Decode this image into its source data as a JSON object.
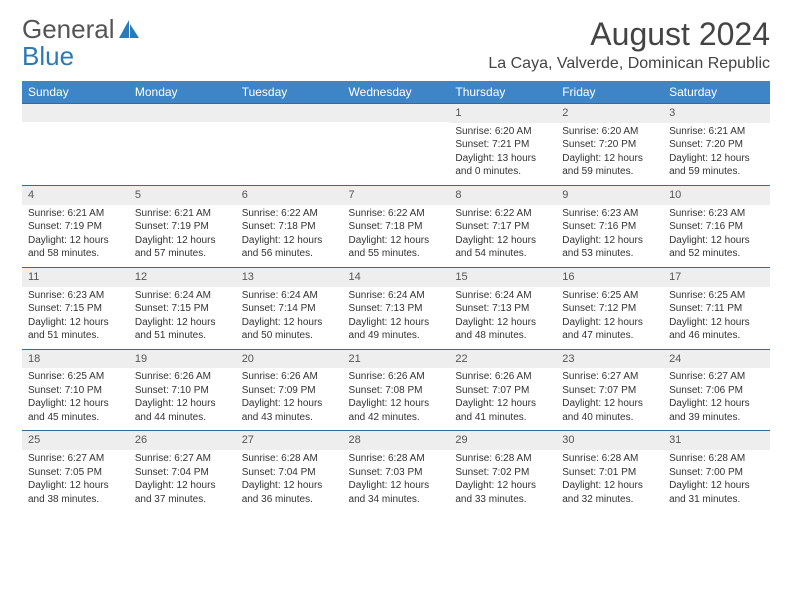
{
  "logo": {
    "text1": "General",
    "text2": "Blue"
  },
  "title": "August 2024",
  "location": "La Caya, Valverde, Dominican Republic",
  "colors": {
    "header_bg": "#3d85c6",
    "header_fg": "#ffffff",
    "row_border": "#356a9a",
    "daynum_bg": "#eeeeee",
    "page_bg": "#ffffff",
    "text": "#333333",
    "logo_gray": "#555555",
    "logo_blue": "#2a7ab8"
  },
  "day_headers": [
    "Sunday",
    "Monday",
    "Tuesday",
    "Wednesday",
    "Thursday",
    "Friday",
    "Saturday"
  ],
  "weeks": [
    [
      null,
      null,
      null,
      null,
      {
        "n": "1",
        "sunrise": "Sunrise: 6:20 AM",
        "sunset": "Sunset: 7:21 PM",
        "daylight": "Daylight: 13 hours and 0 minutes."
      },
      {
        "n": "2",
        "sunrise": "Sunrise: 6:20 AM",
        "sunset": "Sunset: 7:20 PM",
        "daylight": "Daylight: 12 hours and 59 minutes."
      },
      {
        "n": "3",
        "sunrise": "Sunrise: 6:21 AM",
        "sunset": "Sunset: 7:20 PM",
        "daylight": "Daylight: 12 hours and 59 minutes."
      }
    ],
    [
      {
        "n": "4",
        "sunrise": "Sunrise: 6:21 AM",
        "sunset": "Sunset: 7:19 PM",
        "daylight": "Daylight: 12 hours and 58 minutes."
      },
      {
        "n": "5",
        "sunrise": "Sunrise: 6:21 AM",
        "sunset": "Sunset: 7:19 PM",
        "daylight": "Daylight: 12 hours and 57 minutes."
      },
      {
        "n": "6",
        "sunrise": "Sunrise: 6:22 AM",
        "sunset": "Sunset: 7:18 PM",
        "daylight": "Daylight: 12 hours and 56 minutes."
      },
      {
        "n": "7",
        "sunrise": "Sunrise: 6:22 AM",
        "sunset": "Sunset: 7:18 PM",
        "daylight": "Daylight: 12 hours and 55 minutes."
      },
      {
        "n": "8",
        "sunrise": "Sunrise: 6:22 AM",
        "sunset": "Sunset: 7:17 PM",
        "daylight": "Daylight: 12 hours and 54 minutes."
      },
      {
        "n": "9",
        "sunrise": "Sunrise: 6:23 AM",
        "sunset": "Sunset: 7:16 PM",
        "daylight": "Daylight: 12 hours and 53 minutes."
      },
      {
        "n": "10",
        "sunrise": "Sunrise: 6:23 AM",
        "sunset": "Sunset: 7:16 PM",
        "daylight": "Daylight: 12 hours and 52 minutes."
      }
    ],
    [
      {
        "n": "11",
        "sunrise": "Sunrise: 6:23 AM",
        "sunset": "Sunset: 7:15 PM",
        "daylight": "Daylight: 12 hours and 51 minutes."
      },
      {
        "n": "12",
        "sunrise": "Sunrise: 6:24 AM",
        "sunset": "Sunset: 7:15 PM",
        "daylight": "Daylight: 12 hours and 51 minutes."
      },
      {
        "n": "13",
        "sunrise": "Sunrise: 6:24 AM",
        "sunset": "Sunset: 7:14 PM",
        "daylight": "Daylight: 12 hours and 50 minutes."
      },
      {
        "n": "14",
        "sunrise": "Sunrise: 6:24 AM",
        "sunset": "Sunset: 7:13 PM",
        "daylight": "Daylight: 12 hours and 49 minutes."
      },
      {
        "n": "15",
        "sunrise": "Sunrise: 6:24 AM",
        "sunset": "Sunset: 7:13 PM",
        "daylight": "Daylight: 12 hours and 48 minutes."
      },
      {
        "n": "16",
        "sunrise": "Sunrise: 6:25 AM",
        "sunset": "Sunset: 7:12 PM",
        "daylight": "Daylight: 12 hours and 47 minutes."
      },
      {
        "n": "17",
        "sunrise": "Sunrise: 6:25 AM",
        "sunset": "Sunset: 7:11 PM",
        "daylight": "Daylight: 12 hours and 46 minutes."
      }
    ],
    [
      {
        "n": "18",
        "sunrise": "Sunrise: 6:25 AM",
        "sunset": "Sunset: 7:10 PM",
        "daylight": "Daylight: 12 hours and 45 minutes."
      },
      {
        "n": "19",
        "sunrise": "Sunrise: 6:26 AM",
        "sunset": "Sunset: 7:10 PM",
        "daylight": "Daylight: 12 hours and 44 minutes."
      },
      {
        "n": "20",
        "sunrise": "Sunrise: 6:26 AM",
        "sunset": "Sunset: 7:09 PM",
        "daylight": "Daylight: 12 hours and 43 minutes."
      },
      {
        "n": "21",
        "sunrise": "Sunrise: 6:26 AM",
        "sunset": "Sunset: 7:08 PM",
        "daylight": "Daylight: 12 hours and 42 minutes."
      },
      {
        "n": "22",
        "sunrise": "Sunrise: 6:26 AM",
        "sunset": "Sunset: 7:07 PM",
        "daylight": "Daylight: 12 hours and 41 minutes."
      },
      {
        "n": "23",
        "sunrise": "Sunrise: 6:27 AM",
        "sunset": "Sunset: 7:07 PM",
        "daylight": "Daylight: 12 hours and 40 minutes."
      },
      {
        "n": "24",
        "sunrise": "Sunrise: 6:27 AM",
        "sunset": "Sunset: 7:06 PM",
        "daylight": "Daylight: 12 hours and 39 minutes."
      }
    ],
    [
      {
        "n": "25",
        "sunrise": "Sunrise: 6:27 AM",
        "sunset": "Sunset: 7:05 PM",
        "daylight": "Daylight: 12 hours and 38 minutes."
      },
      {
        "n": "26",
        "sunrise": "Sunrise: 6:27 AM",
        "sunset": "Sunset: 7:04 PM",
        "daylight": "Daylight: 12 hours and 37 minutes."
      },
      {
        "n": "27",
        "sunrise": "Sunrise: 6:28 AM",
        "sunset": "Sunset: 7:04 PM",
        "daylight": "Daylight: 12 hours and 36 minutes."
      },
      {
        "n": "28",
        "sunrise": "Sunrise: 6:28 AM",
        "sunset": "Sunset: 7:03 PM",
        "daylight": "Daylight: 12 hours and 34 minutes."
      },
      {
        "n": "29",
        "sunrise": "Sunrise: 6:28 AM",
        "sunset": "Sunset: 7:02 PM",
        "daylight": "Daylight: 12 hours and 33 minutes."
      },
      {
        "n": "30",
        "sunrise": "Sunrise: 6:28 AM",
        "sunset": "Sunset: 7:01 PM",
        "daylight": "Daylight: 12 hours and 32 minutes."
      },
      {
        "n": "31",
        "sunrise": "Sunrise: 6:28 AM",
        "sunset": "Sunset: 7:00 PM",
        "daylight": "Daylight: 12 hours and 31 minutes."
      }
    ]
  ]
}
